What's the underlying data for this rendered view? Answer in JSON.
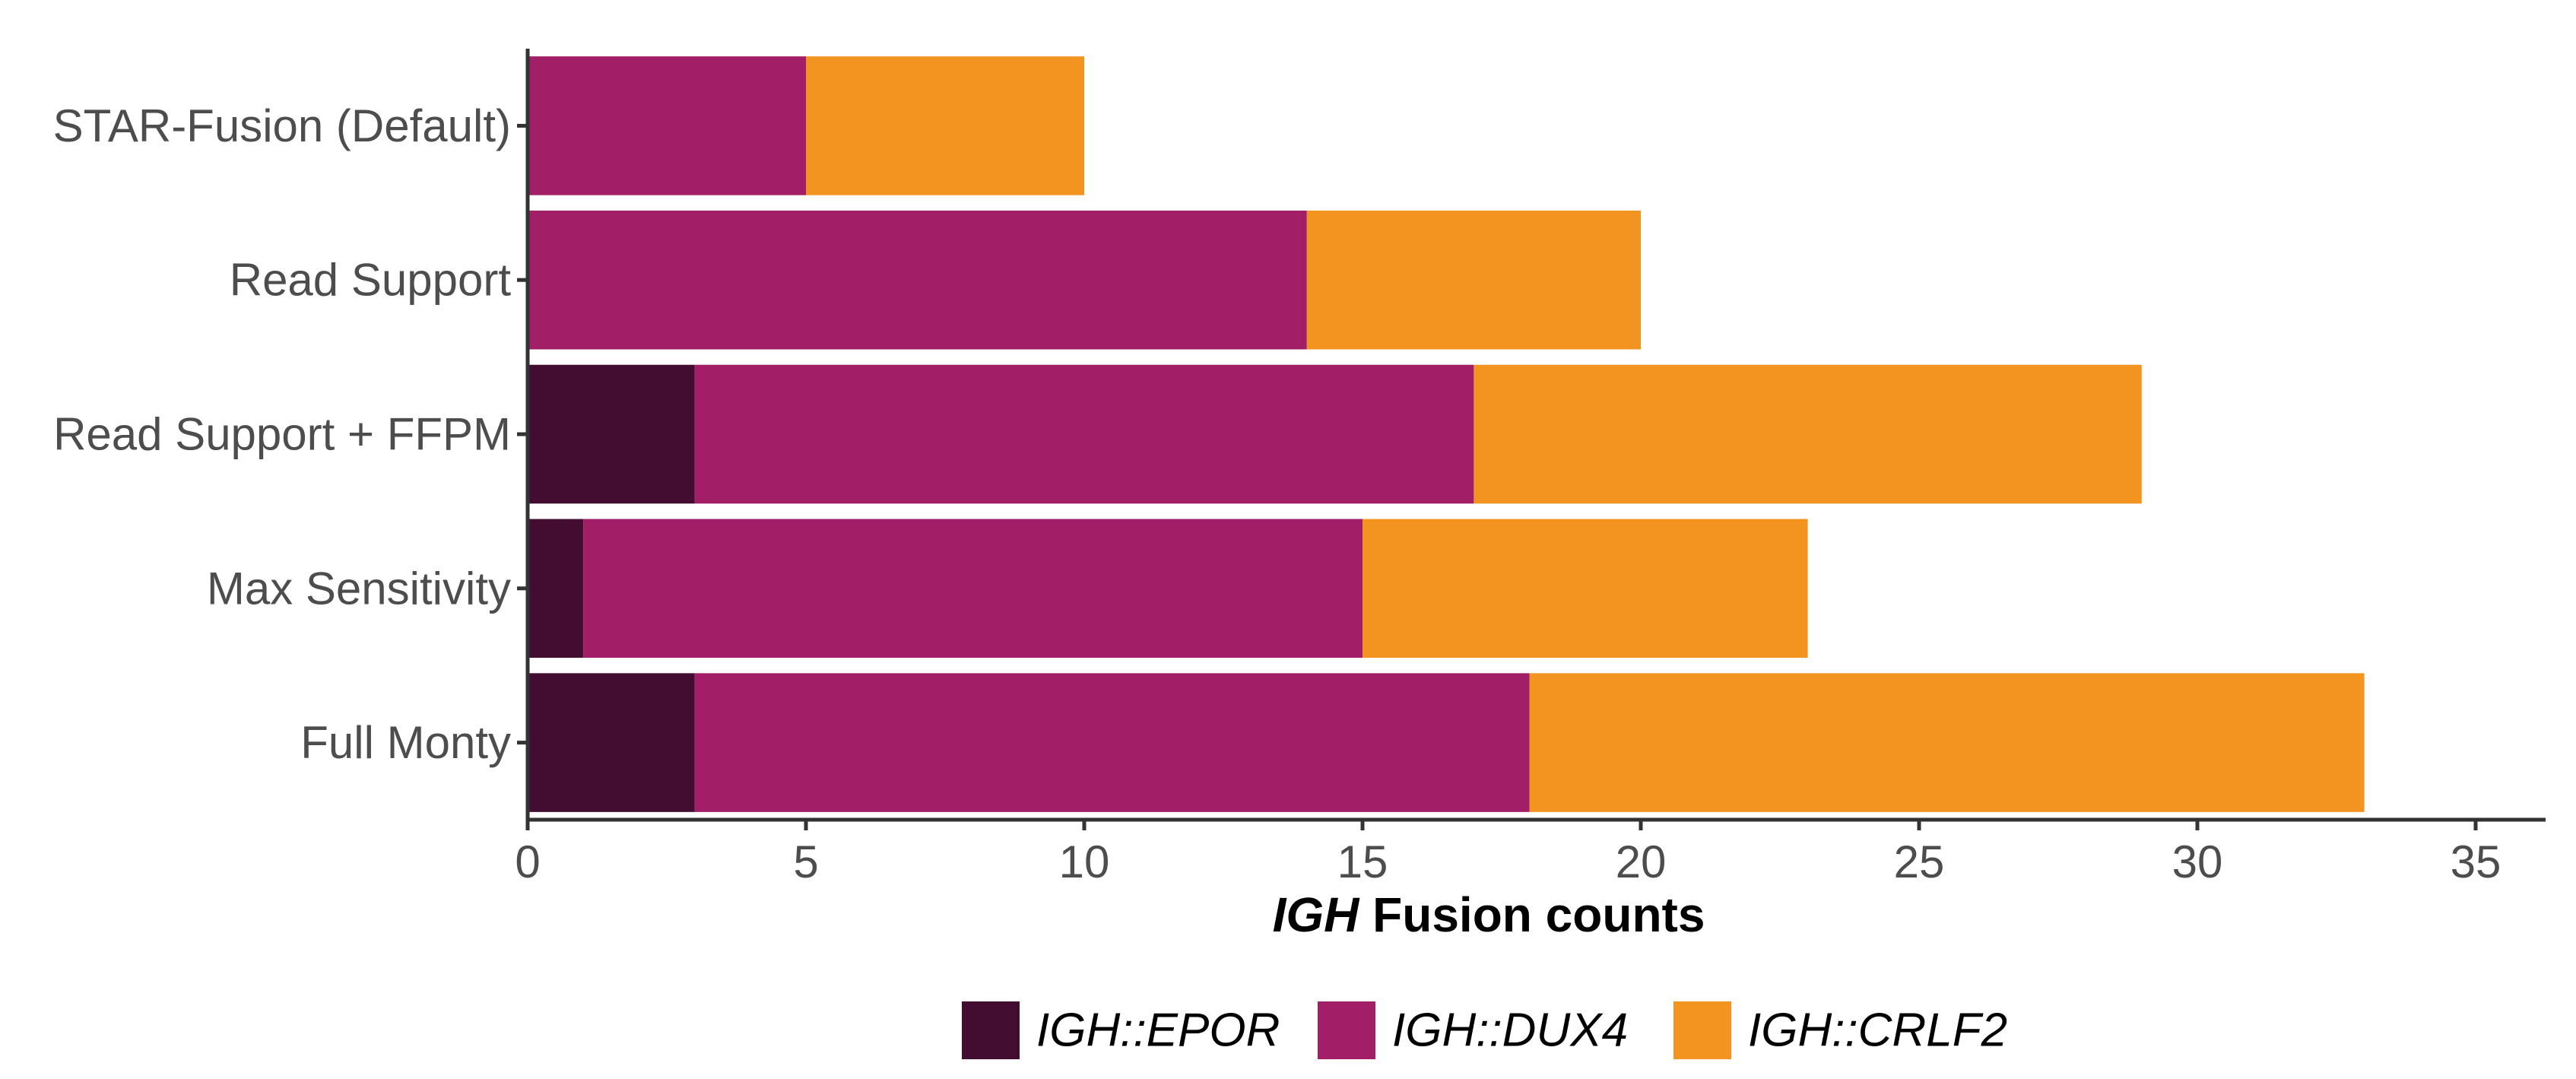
{
  "chart_data": {
    "type": "bar",
    "orientation": "horizontal",
    "stacked": true,
    "categories": [
      "STAR-Fusion (Default)",
      "Read Support",
      "Read Support + FFPM",
      "Max Sensitivity",
      "Full Monty"
    ],
    "series": [
      {
        "name": "IGH::EPOR",
        "color": "#420d30",
        "values": [
          0,
          0,
          3,
          1,
          3
        ]
      },
      {
        "name": "IGH::DUX4",
        "color": "#a21e67",
        "values": [
          5,
          14,
          14,
          14,
          15
        ]
      },
      {
        "name": "IGH::CRLF2",
        "color": "#f39320",
        "values": [
          5,
          6,
          12,
          8,
          15
        ]
      }
    ],
    "xlabel_italic": "IGH",
    "xlabel_rest": " Fusion counts",
    "xlim": [
      0,
      36
    ],
    "xticks": [
      0,
      5,
      10,
      15,
      20,
      25,
      30,
      35
    ],
    "grid": false,
    "legend_position": "bottom"
  }
}
